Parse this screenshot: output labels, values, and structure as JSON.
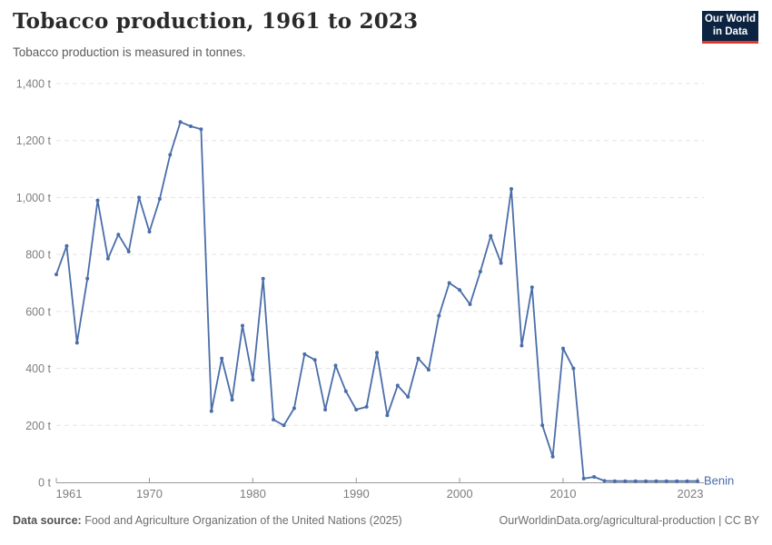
{
  "header": {
    "title": "Tobacco production, 1961 to 2023",
    "subtitle": "Tobacco production is measured in tonnes.",
    "logo": {
      "line1": "Our World",
      "line2": "in Data"
    }
  },
  "chart_data": {
    "type": "line",
    "title": "Tobacco production, 1961 to 2023",
    "ylabel": "",
    "xlabel": "",
    "unit": "t",
    "grid": true,
    "legend_position": "end-of-line-label",
    "xlim": [
      1961,
      2023
    ],
    "ylim": [
      0,
      1400
    ],
    "yticks": [
      0,
      200,
      400,
      600,
      800,
      1000,
      1200,
      1400
    ],
    "xticks": [
      1961,
      1970,
      1980,
      1990,
      2000,
      2010,
      2023
    ],
    "series": [
      {
        "name": "Benin",
        "color": "#4a6da9",
        "x": [
          1961,
          1962,
          1963,
          1964,
          1965,
          1966,
          1967,
          1968,
          1969,
          1970,
          1971,
          1972,
          1973,
          1974,
          1975,
          1976,
          1977,
          1978,
          1979,
          1980,
          1981,
          1982,
          1983,
          1984,
          1985,
          1986,
          1987,
          1988,
          1989,
          1990,
          1991,
          1992,
          1993,
          1994,
          1995,
          1996,
          1997,
          1998,
          1999,
          2000,
          2001,
          2002,
          2003,
          2004,
          2005,
          2006,
          2007,
          2008,
          2009,
          2010,
          2011,
          2012,
          2013,
          2014,
          2015,
          2016,
          2017,
          2018,
          2019,
          2020,
          2021,
          2022,
          2023
        ],
        "values": [
          730,
          830,
          490,
          715,
          990,
          785,
          870,
          810,
          1000,
          880,
          995,
          1150,
          1265,
          1250,
          1240,
          250,
          435,
          290,
          550,
          360,
          715,
          220,
          200,
          260,
          450,
          430,
          255,
          410,
          320,
          255,
          265,
          455,
          235,
          340,
          300,
          435,
          395,
          585,
          700,
          675,
          625,
          740,
          865,
          770,
          1030,
          480,
          685,
          200,
          90,
          470,
          400,
          13,
          19,
          5,
          4,
          4,
          4,
          4,
          4,
          4,
          4,
          4,
          4
        ]
      }
    ],
    "colors": {
      "line": "#4a6da9",
      "gridline": "#e3e3e3",
      "axis": "#999999",
      "tick_label": "#7d7d7d"
    }
  },
  "footer": {
    "source_label": "Data source:",
    "source_text": " Food and Agriculture Organization of the United Nations (2025)",
    "link_text": "OurWorldinData.org/agricultural-production | CC BY"
  }
}
